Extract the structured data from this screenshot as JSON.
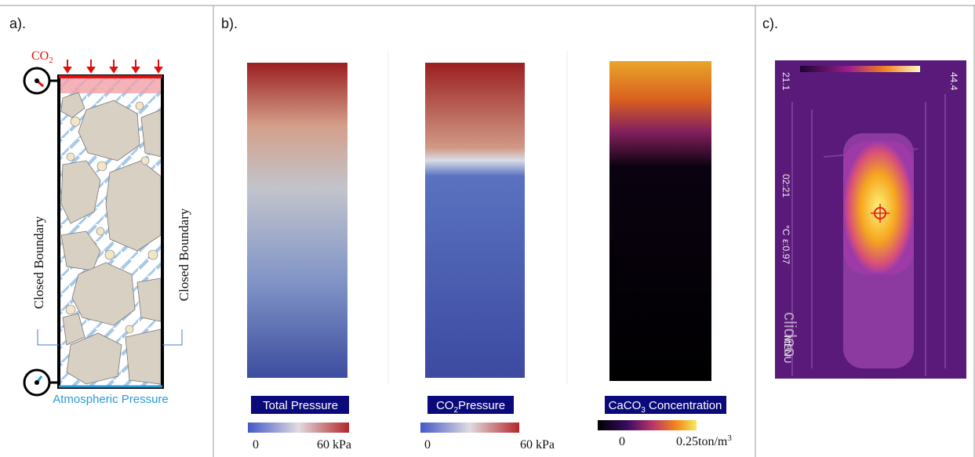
{
  "panel_a": {
    "label": "a).",
    "gas": {
      "main": "CO",
      "sub": "2"
    },
    "left_boundary": "Closed Boundary",
    "right_boundary": "Closed Boundary",
    "bottom": "Atmospheric Pressure"
  },
  "panel_b": {
    "label": "b).",
    "maps": [
      {
        "caption": {
          "main": "Total Pressure"
        },
        "min": "0",
        "max": {
          "main": "60 kPa"
        }
      },
      {
        "caption": {
          "main": "CO",
          "sub": "2",
          "rest": "Pressure"
        },
        "min": "0",
        "max": {
          "main": "60 kPa"
        }
      },
      {
        "caption": {
          "main": "CaCO",
          "sub": "3",
          "rest": " Concentration"
        },
        "min": "0",
        "max": {
          "main": "0.25ton/m",
          "sup": "3"
        }
      }
    ]
  },
  "panel_c": {
    "label": "c).",
    "min_temp": "21.1",
    "max_temp": "44.4",
    "time": "02:21",
    "unit": "°C",
    "emissivity": "ε:0.97",
    "watermark": "clideo",
    "menu": "MENU"
  }
}
